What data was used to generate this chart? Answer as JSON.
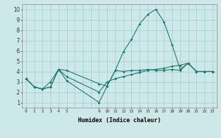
{
  "xlabel": "Humidex (Indice chaleur)",
  "bg_color": "#cce8e8",
  "line_color": "#1a7a6e",
  "grid_color": "#aacece",
  "xlim": [
    -0.5,
    23.5
  ],
  "ylim": [
    0.5,
    10.5
  ],
  "xtick_positions": [
    0,
    1,
    2,
    3,
    4,
    5,
    9,
    10,
    11,
    12,
    13,
    14,
    15,
    16,
    17,
    18,
    19,
    20,
    21,
    22,
    23
  ],
  "xtick_labels": [
    "0",
    "1",
    "2",
    "3",
    "4",
    "5",
    "9",
    "10",
    "11",
    "12",
    "13",
    "14",
    "15",
    "16",
    "17",
    "18",
    "19",
    "20",
    "21",
    "22",
    "23"
  ],
  "yticks": [
    1,
    2,
    3,
    4,
    5,
    6,
    7,
    8,
    9,
    10
  ],
  "grid_xticks": [
    0,
    1,
    2,
    3,
    4,
    5,
    6,
    7,
    8,
    9,
    10,
    11,
    12,
    13,
    14,
    15,
    16,
    17,
    18,
    19,
    20,
    21,
    22,
    23
  ],
  "line1_x": [
    0,
    1,
    2,
    3,
    4,
    5,
    9,
    10,
    11,
    12,
    13,
    14,
    15,
    16,
    17,
    18,
    19,
    20,
    21,
    22,
    23
  ],
  "line1_y": [
    3.3,
    2.5,
    2.3,
    2.5,
    4.2,
    4.1,
    2.8,
    2.6,
    4.1,
    5.9,
    7.1,
    8.6,
    9.5,
    10.0,
    8.8,
    6.6,
    4.2,
    4.8,
    4.0,
    4.0,
    4.0
  ],
  "line2_x": [
    0,
    1,
    2,
    3,
    4,
    5,
    9,
    10,
    11,
    12,
    13,
    14,
    15,
    16,
    17,
    18,
    19,
    20,
    21,
    22,
    23
  ],
  "line2_y": [
    3.3,
    2.5,
    2.3,
    3.0,
    4.2,
    3.1,
    1.0,
    2.6,
    4.1,
    4.0,
    4.1,
    4.1,
    4.2,
    4.1,
    4.1,
    4.2,
    4.1,
    4.8,
    4.0,
    4.0,
    4.0
  ],
  "line3_x": [
    0,
    1,
    2,
    3,
    4,
    5,
    9,
    10,
    11,
    12,
    13,
    14,
    15,
    16,
    17,
    18,
    19,
    20,
    21,
    22,
    23
  ],
  "line3_y": [
    3.3,
    2.5,
    2.3,
    2.5,
    4.2,
    3.5,
    2.0,
    3.0,
    3.3,
    3.5,
    3.7,
    3.9,
    4.1,
    4.2,
    4.3,
    4.5,
    4.6,
    4.8,
    4.0,
    4.0,
    4.0
  ]
}
